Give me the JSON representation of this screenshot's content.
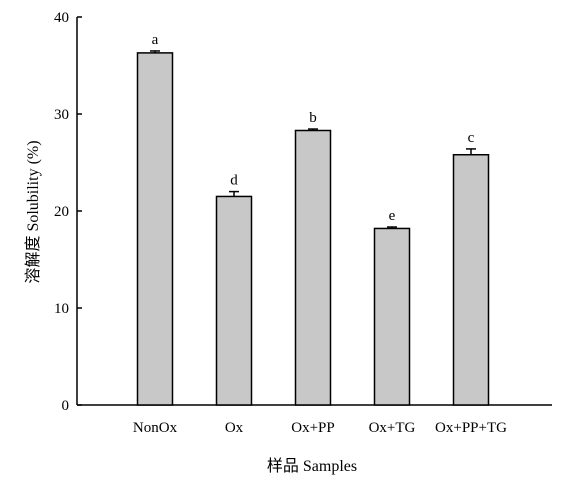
{
  "chart_data": {
    "type": "bar",
    "categories": [
      "NonOx",
      "Ox",
      "Ox+PP",
      "Ox+TG",
      "Ox+PP+TG"
    ],
    "values": [
      36.3,
      21.5,
      28.3,
      18.2,
      25.8
    ],
    "errors": [
      0.2,
      0.5,
      0.15,
      0.15,
      0.6
    ],
    "significance": [
      "a",
      "d",
      "b",
      "e",
      "c"
    ],
    "title": "",
    "xlabel": "样品 Samples",
    "ylabel": "溶解度 Solubility (%)",
    "ylim": [
      0,
      40
    ],
    "yticks": [
      0,
      10,
      20,
      30,
      40
    ],
    "grid": false,
    "bar_color": "#c8c8c8",
    "edge_color": "#000000"
  }
}
